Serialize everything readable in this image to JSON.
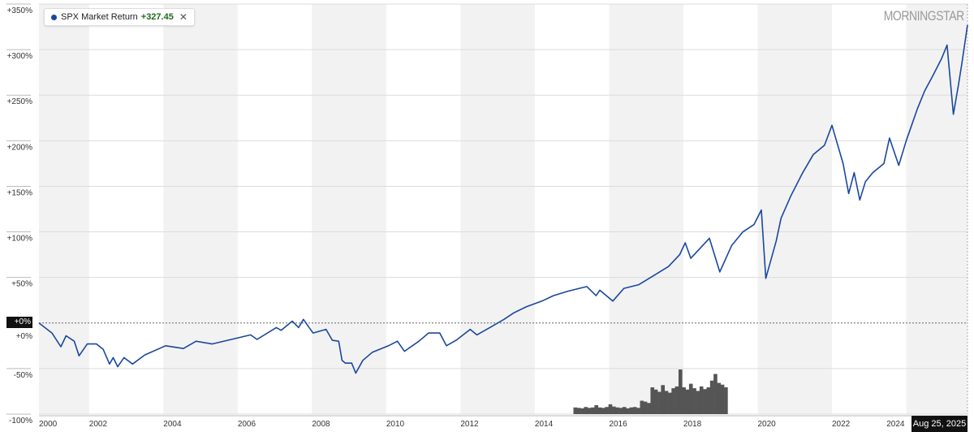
{
  "legend": {
    "series_name": "SPX Market Return",
    "value": "+327.45",
    "close_icon": "close-icon",
    "dot_color": "#1a47a0"
  },
  "logo": "MORNINGSTAR",
  "crosshair": {
    "y_label": "+0%",
    "x_label": "Aug 25, 2025"
  },
  "colors": {
    "line": "#1a47a0",
    "band": "#f2f2f2",
    "grid": "#dcdcdc",
    "volume": "#555555"
  },
  "chart_data": {
    "type": "line",
    "title": "",
    "xlabel": "",
    "ylabel": "",
    "xlim": [
      2000.65,
      2025.65
    ],
    "ylim": [
      -100,
      350
    ],
    "grid": true,
    "legend_placement": "top-left",
    "y_ticks": [
      {
        "value": 350,
        "label": "+350%"
      },
      {
        "value": 300,
        "label": "+300%"
      },
      {
        "value": 250,
        "label": "+250%"
      },
      {
        "value": 200,
        "label": "+200%"
      },
      {
        "value": 150,
        "label": "+150%"
      },
      {
        "value": 100,
        "label": "+100%"
      },
      {
        "value": 50,
        "label": "+50%"
      },
      {
        "value": 0,
        "label": "+0%"
      },
      {
        "value": -50,
        "label": "-50%"
      },
      {
        "value": -100,
        "label": "-100%"
      }
    ],
    "x_ticks": [
      {
        "value": 2000,
        "label": "2000"
      },
      {
        "value": 2002,
        "label": "2002"
      },
      {
        "value": 2004,
        "label": "2004"
      },
      {
        "value": 2006,
        "label": "2006"
      },
      {
        "value": 2008,
        "label": "2008"
      },
      {
        "value": 2010,
        "label": "2010"
      },
      {
        "value": 2012,
        "label": "2012"
      },
      {
        "value": 2014,
        "label": "2014"
      },
      {
        "value": 2016,
        "label": "2016"
      },
      {
        "value": 2018,
        "label": "2018"
      },
      {
        "value": 2020,
        "label": "2020"
      },
      {
        "value": 2022,
        "label": "2022"
      },
      {
        "value": 2024,
        "label": "2024"
      }
    ],
    "series": [
      {
        "name": "SPX Market Return",
        "color": "#1a47a0",
        "x": [
          2000.65,
          2001.0,
          2001.24,
          2001.38,
          2001.6,
          2001.73,
          2001.95,
          2002.2,
          2002.38,
          2002.55,
          2002.65,
          2002.77,
          2002.94,
          2003.17,
          2003.5,
          2004.06,
          2004.54,
          2004.88,
          2005.31,
          2005.83,
          2006.35,
          2006.52,
          2007.04,
          2007.17,
          2007.47,
          2007.64,
          2007.77,
          2008.03,
          2008.38,
          2008.55,
          2008.72,
          2008.81,
          2008.9,
          2009.07,
          2009.18,
          2009.37,
          2009.63,
          2010.06,
          2010.3,
          2010.49,
          2010.88,
          2011.14,
          2011.44,
          2011.62,
          2011.88,
          2012.26,
          2012.44,
          2012.83,
          2013.17,
          2013.43,
          2013.78,
          2014.19,
          2014.5,
          2014.9,
          2015.4,
          2015.65,
          2015.75,
          2016.1,
          2016.4,
          2016.8,
          2017.2,
          2017.6,
          2017.9,
          2018.05,
          2018.2,
          2018.7,
          2018.98,
          2019.3,
          2019.6,
          2019.9,
          2020.1,
          2020.22,
          2020.5,
          2020.63,
          2020.9,
          2021.2,
          2021.5,
          2021.8,
          2022.0,
          2022.3,
          2022.45,
          2022.6,
          2022.75,
          2022.9,
          2023.1,
          2023.4,
          2023.55,
          2023.8,
          2024.0,
          2024.3,
          2024.5,
          2024.7,
          2024.95,
          2025.1,
          2025.27,
          2025.4,
          2025.5,
          2025.65
        ],
        "y": [
          0,
          -11,
          -26,
          -14,
          -20,
          -36,
          -23,
          -23,
          -29,
          -45,
          -38,
          -48,
          -38,
          -45,
          -35,
          -25,
          -28,
          -20,
          -23,
          -18,
          -13,
          -18,
          -5,
          -8,
          2,
          -5,
          4,
          -11,
          -7,
          -19,
          -20,
          -41,
          -44,
          -44,
          -55,
          -41,
          -32,
          -25,
          -20,
          -31,
          -20,
          -11,
          -11,
          -25,
          -19,
          -7,
          -13,
          -4,
          4,
          11,
          18,
          24,
          30,
          35,
          40,
          30,
          36,
          24,
          38,
          42,
          52,
          62,
          75,
          88,
          71,
          93,
          56,
          85,
          100,
          108,
          124,
          49,
          90,
          115,
          140,
          164,
          185,
          195,
          217,
          175,
          142,
          165,
          135,
          155,
          165,
          175,
          203,
          173,
          200,
          235,
          255,
          270,
          290,
          305,
          229,
          260,
          285,
          327
        ]
      }
    ],
    "volume": {
      "x_range": [
        2015.04,
        2019.19
      ],
      "relative_values": [
        0.15,
        0.14,
        0.13,
        0.16,
        0.14,
        0.15,
        0.2,
        0.15,
        0.14,
        0.16,
        0.22,
        0.17,
        0.15,
        0.14,
        0.16,
        0.13,
        0.15,
        0.16,
        0.14,
        0.3,
        0.28,
        0.25,
        0.6,
        0.55,
        0.5,
        0.65,
        0.52,
        0.48,
        0.58,
        0.62,
        1.0,
        0.6,
        0.55,
        0.68,
        0.58,
        0.52,
        0.62,
        0.56,
        0.6,
        0.75,
        0.9,
        0.7,
        0.66,
        0.6
      ]
    }
  }
}
